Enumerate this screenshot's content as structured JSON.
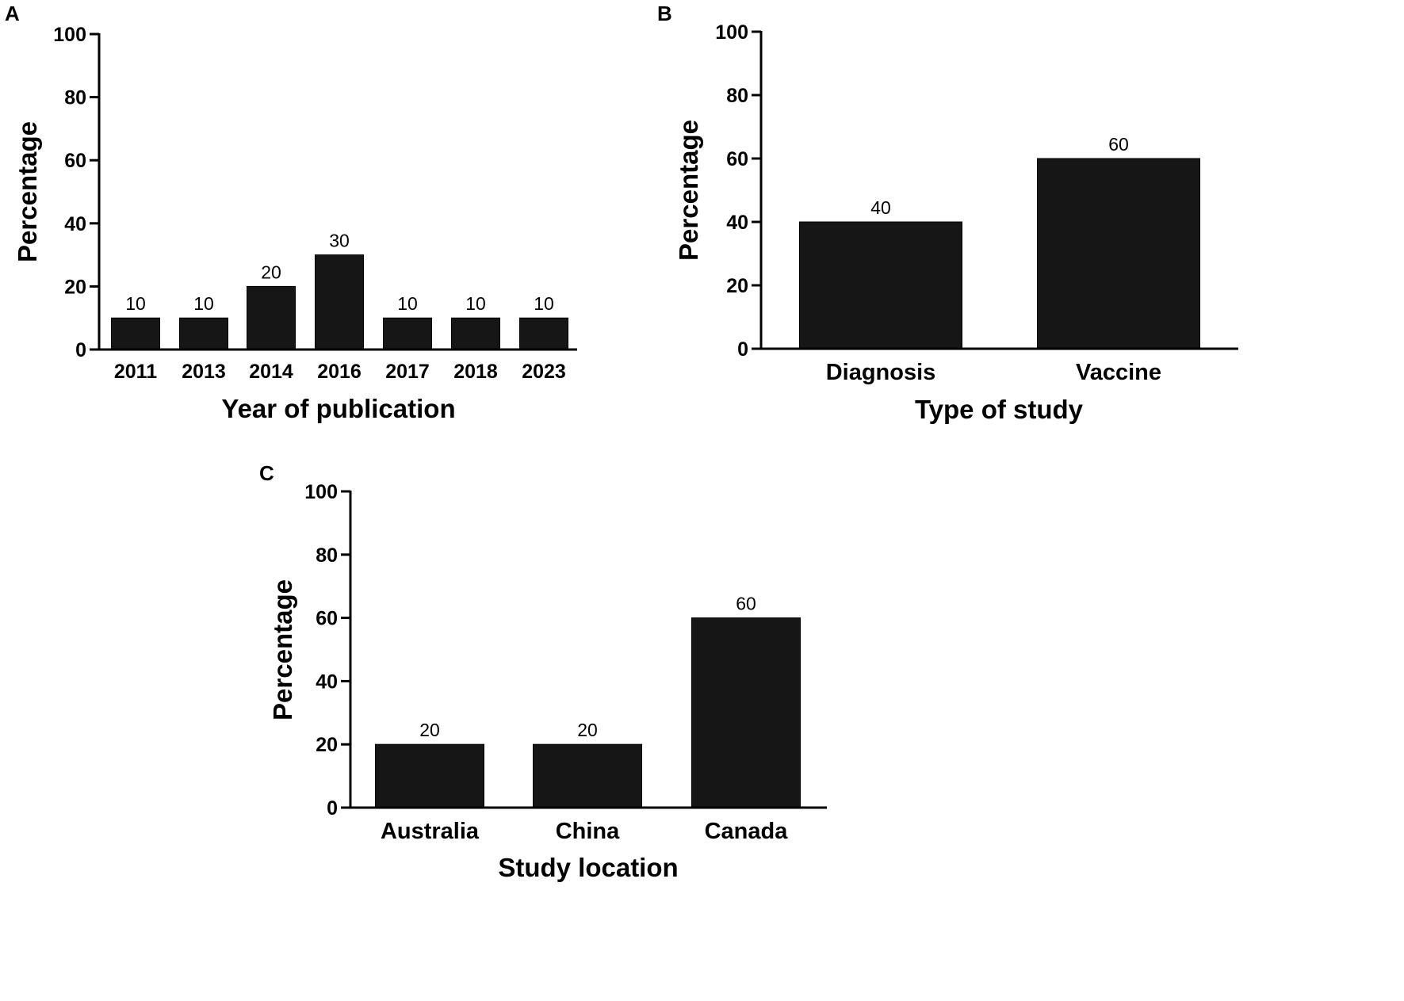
{
  "figure": {
    "colors": {
      "bar": "#161616",
      "axis": "#000000",
      "background": "#ffffff"
    }
  },
  "chart_data": [
    {
      "panel": "A",
      "type": "bar",
      "categories": [
        "2011",
        "2013",
        "2014",
        "2016",
        "2017",
        "2018",
        "2023"
      ],
      "values": [
        10,
        10,
        20,
        30,
        10,
        10,
        10
      ],
      "data_labels": [
        "10",
        "10",
        "20",
        "30",
        "10",
        "10",
        "10"
      ],
      "title": "",
      "xlabel": "Year of publication",
      "ylabel": "Percentage",
      "ylim": [
        0,
        100
      ],
      "yticks": [
        "0",
        "20",
        "40",
        "60",
        "80",
        "100"
      ],
      "grid": false
    },
    {
      "panel": "B",
      "type": "bar",
      "categories": [
        "Diagnosis",
        "Vaccine"
      ],
      "values": [
        40,
        60
      ],
      "data_labels": [
        "40",
        "60"
      ],
      "title": "",
      "xlabel": "Type of study",
      "ylabel": "Percentage",
      "ylim": [
        0,
        100
      ],
      "yticks": [
        "0",
        "20",
        "40",
        "60",
        "80",
        "100"
      ],
      "grid": false
    },
    {
      "panel": "C",
      "type": "bar",
      "categories": [
        "Australia",
        "China",
        "Canada"
      ],
      "values": [
        20,
        20,
        60
      ],
      "data_labels": [
        "20",
        "20",
        "60"
      ],
      "title": "",
      "xlabel": "Study location",
      "ylabel": "Percentage",
      "ylim": [
        0,
        100
      ],
      "yticks": [
        "0",
        "20",
        "40",
        "60",
        "80",
        "100"
      ],
      "grid": false
    }
  ]
}
